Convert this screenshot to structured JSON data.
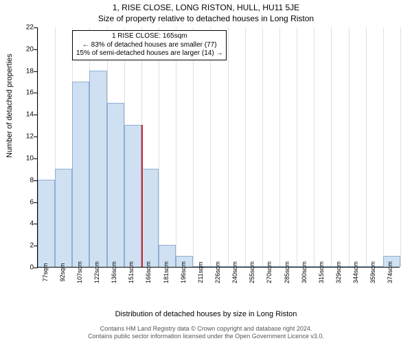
{
  "title_line1": "1, RISE CLOSE, LONG RISTON, HULL, HU11 5JE",
  "title_line2": "Size of property relative to detached houses in Long Riston",
  "ylabel": "Number of detached properties",
  "xlabel": "Distribution of detached houses by size in Long Riston",
  "chart": {
    "type": "histogram",
    "ylim": [
      0,
      22
    ],
    "ytick_step": 2,
    "bar_fill": "#cfe0f3",
    "bar_stroke": "#8faed1",
    "grid_color": "#e0e0e0",
    "background_color": "#ffffff",
    "marker_color": "#d62728",
    "marker_x_index": 6,
    "categories": [
      "77sqm",
      "92sqm",
      "107sqm",
      "122sqm",
      "136sqm",
      "151sqm",
      "166sqm",
      "181sqm",
      "196sqm",
      "211sqm",
      "226sqm",
      "240sqm",
      "255sqm",
      "270sqm",
      "285sqm",
      "300sqm",
      "315sqm",
      "329sqm",
      "344sqm",
      "359sqm",
      "374sqm"
    ],
    "values": [
      8,
      9,
      17,
      18,
      15,
      13,
      9,
      2,
      1,
      0,
      0,
      0,
      0,
      0,
      0,
      0,
      0,
      0,
      0,
      0,
      1
    ],
    "bar_width_ratio": 1.0
  },
  "annotation": {
    "line1": "1 RISE CLOSE: 165sqm",
    "line2": "← 83% of detached houses are smaller (77)",
    "line3": "15% of semi-detached houses are larger (14) →"
  },
  "footer": {
    "line1": "Contains HM Land Registry data © Crown copyright and database right 2024.",
    "line2": "Contains public sector information licensed under the Open Government Licence v3.0."
  }
}
